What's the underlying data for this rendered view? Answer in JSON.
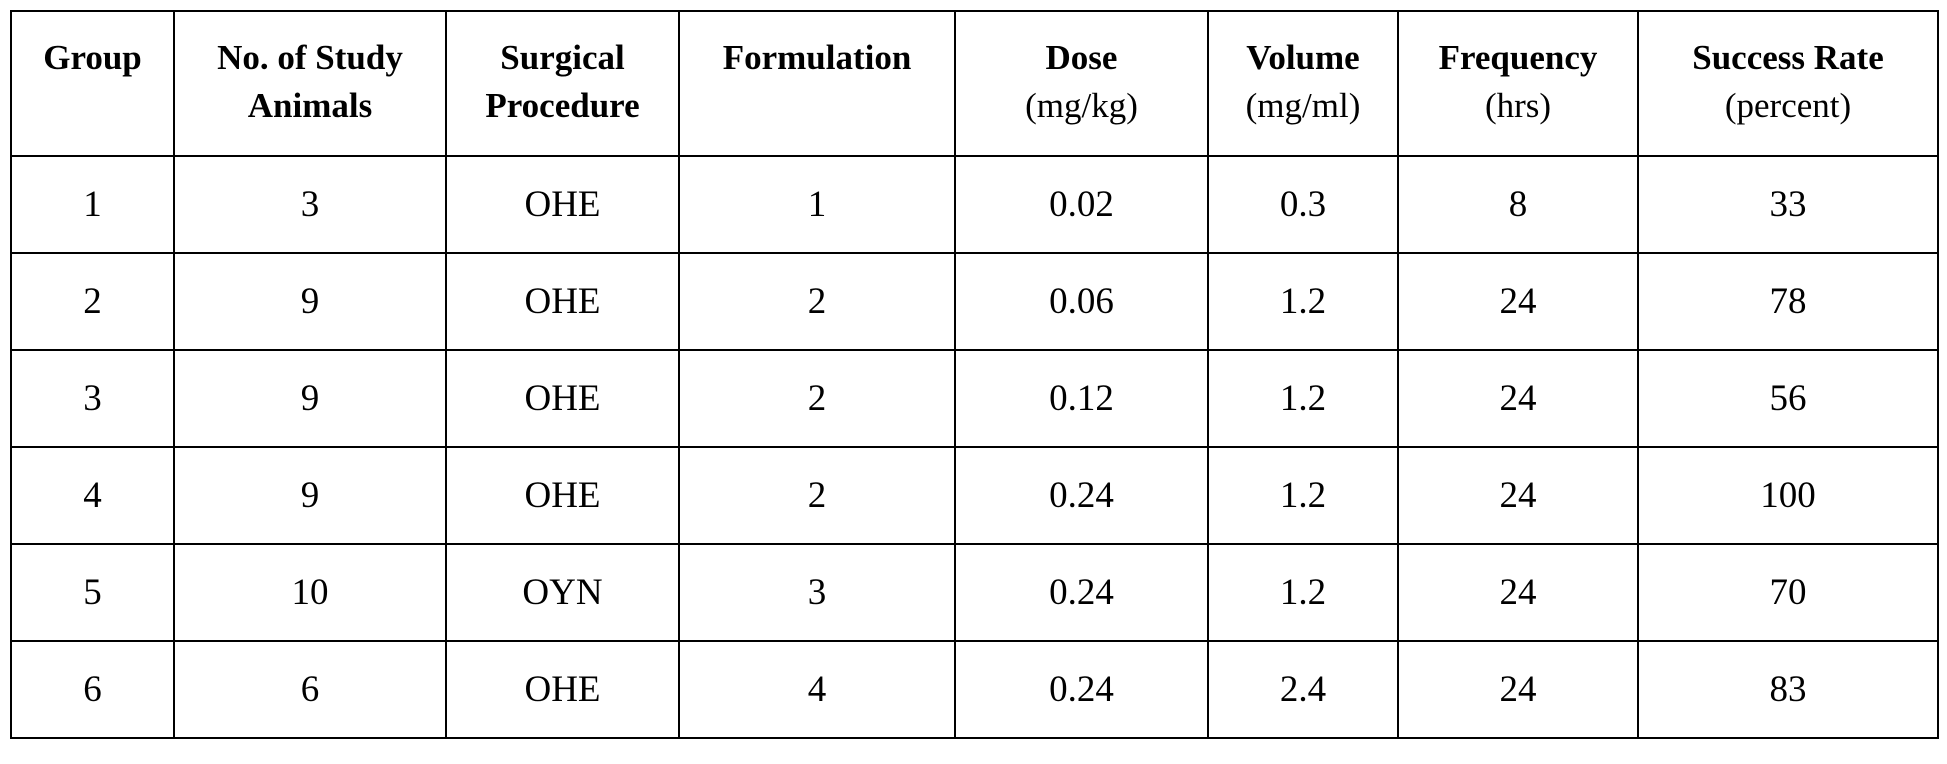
{
  "table": {
    "headers": [
      {
        "title": "Group",
        "unit": ""
      },
      {
        "title": "No. of Study Animals",
        "unit": ""
      },
      {
        "title": "Surgical Procedure",
        "unit": ""
      },
      {
        "title": "Formulation",
        "unit": ""
      },
      {
        "title": "Dose",
        "unit": "(mg/kg)"
      },
      {
        "title": "Volume",
        "unit": "(mg/ml)"
      },
      {
        "title": "Frequency",
        "unit": "(hrs)"
      },
      {
        "title": "Success Rate",
        "unit": "(percent)"
      }
    ],
    "rows": [
      [
        "1",
        "3",
        "OHE",
        "1",
        "0.02",
        "0.3",
        "8",
        "33"
      ],
      [
        "2",
        "9",
        "OHE",
        "2",
        "0.06",
        "1.2",
        "24",
        "78"
      ],
      [
        "3",
        "9",
        "OHE",
        "2",
        "0.12",
        "1.2",
        "24",
        "56"
      ],
      [
        "4",
        "9",
        "OHE",
        "2",
        "0.24",
        "1.2",
        "24",
        "100"
      ],
      [
        "5",
        "10",
        "OYN",
        "3",
        "0.24",
        "1.2",
        "24",
        "70"
      ],
      [
        "6",
        "6",
        "OHE",
        "4",
        "0.24",
        "2.4",
        "24",
        "83"
      ]
    ]
  }
}
